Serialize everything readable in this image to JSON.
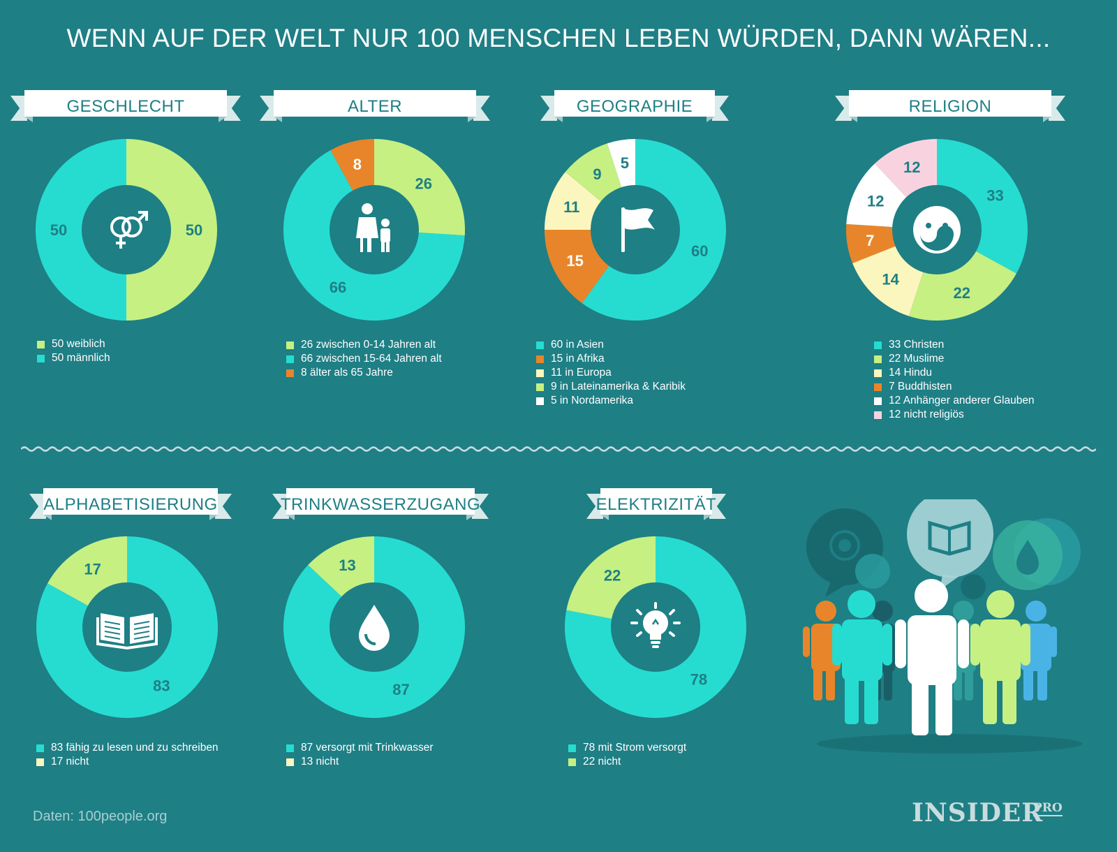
{
  "title": "WENN AUF DER WELT NUR 100 MENSCHEN LEBEN WÜRDEN, DANN WÄREN...",
  "source": "Daten: 100people.org",
  "brand": {
    "name": "INSIDER",
    "suffix": "PRO"
  },
  "colors": {
    "background": "#1e7f85",
    "teal": "#26dcd0",
    "lime": "#c6f082",
    "orange": "#e8852a",
    "cream": "#fbf6bd",
    "white": "#ffffff",
    "pink": "#f8d3df",
    "center": "#1e7f85"
  },
  "chart_data": [
    {
      "type": "pie",
      "title": "GESCHLECHT",
      "icon": "gender-icon",
      "labels": [
        "50 weiblich",
        "50 männlich"
      ],
      "values": [
        50,
        50
      ],
      "colors": [
        "#c6f082",
        "#26dcd0"
      ]
    },
    {
      "type": "pie",
      "title": "ALTER",
      "icon": "family-icon",
      "labels": [
        "26 zwischen 0-14 Jahren alt",
        "66 zwischen 15-64 Jahren alt",
        "8 älter als 65 Jahre"
      ],
      "values": [
        26,
        66,
        8
      ],
      "colors": [
        "#c6f082",
        "#26dcd0",
        "#e8852a"
      ]
    },
    {
      "type": "pie",
      "title": "GEOGRAPHIE",
      "icon": "flag-icon",
      "labels": [
        "60 in Asien",
        "15 in Afrika",
        "11 in Europa",
        "9 in Lateinamerika & Karibik",
        "5 in Nordamerika"
      ],
      "values": [
        60,
        15,
        11,
        9,
        5
      ],
      "colors": [
        "#26dcd0",
        "#e8852a",
        "#fbf6bd",
        "#c6f082",
        "#ffffff"
      ]
    },
    {
      "type": "pie",
      "title": "RELIGION",
      "icon": "yin-yang-icon",
      "labels": [
        "33 Christen",
        "22 Muslime",
        "14 Hindu",
        "7 Buddhisten",
        "12 Anhänger anderer Glauben",
        "12 nicht religiös"
      ],
      "values": [
        33,
        22,
        14,
        7,
        12,
        12
      ],
      "colors": [
        "#26dcd0",
        "#c6f082",
        "#fbf6bd",
        "#e8852a",
        "#ffffff",
        "#f8d3df"
      ]
    },
    {
      "type": "pie",
      "title": "ALPHABETISIERUNG",
      "icon": "book-icon",
      "labels": [
        "83 fähig zu lesen und zu schreiben",
        "17 nicht"
      ],
      "values": [
        83,
        17
      ],
      "colors": [
        "#26dcd0",
        "#c6f082"
      ],
      "legend_colors": [
        "#26dcd0",
        "#fbf6bd"
      ]
    },
    {
      "type": "pie",
      "title": "TRINKWASSERZUGANG",
      "icon": "water-drop-icon",
      "labels": [
        "87 versorgt mit Trinkwasser",
        "13 nicht"
      ],
      "values": [
        87,
        13
      ],
      "colors": [
        "#26dcd0",
        "#c6f082"
      ],
      "legend_colors": [
        "#26dcd0",
        "#fbf6bd"
      ]
    },
    {
      "type": "pie",
      "title": "ELEKTRIZITÄT",
      "icon": "light-bulb-icon",
      "labels": [
        "78 mit Strom versorgt",
        "22 nicht"
      ],
      "values": [
        78,
        22
      ],
      "colors": [
        "#26dcd0",
        "#c6f082"
      ]
    }
  ]
}
